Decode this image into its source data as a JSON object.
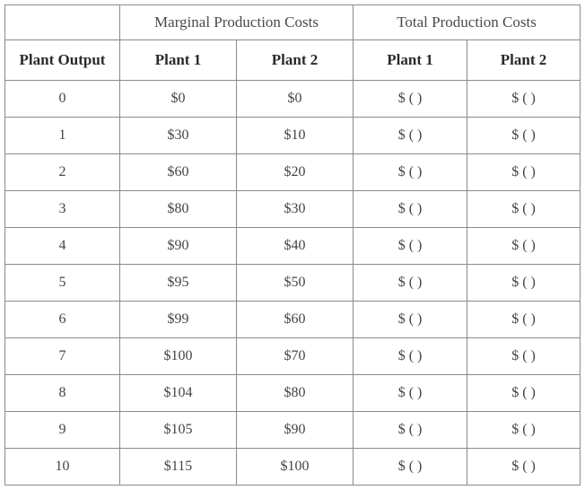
{
  "table": {
    "group_headers": [
      "",
      "Marginal Production Costs",
      "Total Production Costs"
    ],
    "column_headers": [
      "Plant Output",
      "Plant 1",
      "Plant 2",
      "Plant 1",
      "Plant 2"
    ],
    "rows": [
      [
        "0",
        "$0",
        "$0",
        "$ ( )",
        "$ ( )"
      ],
      [
        "1",
        "$30",
        "$10",
        "$ ( )",
        "$ ( )"
      ],
      [
        "2",
        "$60",
        "$20",
        "$ ( )",
        "$ ( )"
      ],
      [
        "3",
        "$80",
        "$30",
        "$ ( )",
        "$ ( )"
      ],
      [
        "4",
        "$90",
        "$40",
        "$ ( )",
        "$ ( )"
      ],
      [
        "5",
        "$95",
        "$50",
        "$ ( )",
        "$ ( )"
      ],
      [
        "6",
        "$99",
        "$60",
        "$ ( )",
        "$ ( )"
      ],
      [
        "7",
        "$100",
        "$70",
        "$ ( )",
        "$ ( )"
      ],
      [
        "8",
        "$104",
        "$80",
        "$ ( )",
        "$ ( )"
      ],
      [
        "9",
        "$105",
        "$90",
        "$ ( )",
        "$ ( )"
      ],
      [
        "10",
        "$115",
        "$100",
        "$ ( )",
        "$ ( )"
      ]
    ]
  }
}
